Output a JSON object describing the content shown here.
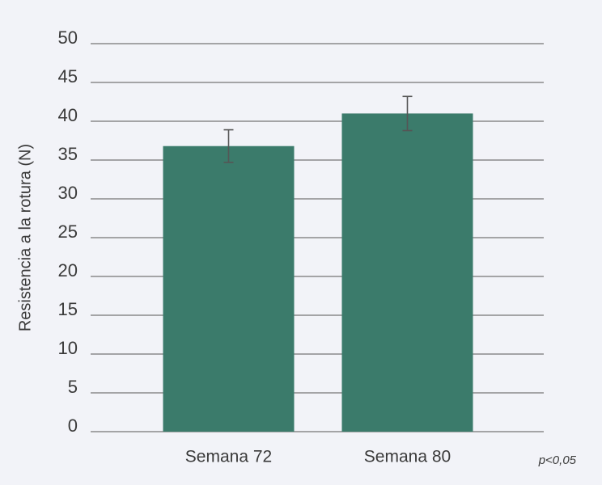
{
  "chart_data": {
    "type": "bar",
    "y_label": "Resistencia a la rotura (N)",
    "annotation": "p<0,05",
    "categories": [
      "Semana 72",
      "Semana 80"
    ],
    "values": [
      36.8,
      41.0
    ],
    "errors": [
      2.1,
      2.2
    ],
    "color": "#3b7b6b",
    "ylim": [
      0,
      50
    ],
    "yticks": [
      0,
      5,
      10,
      15,
      20,
      25,
      30,
      35,
      40,
      45,
      50
    ],
    "grid": true
  }
}
